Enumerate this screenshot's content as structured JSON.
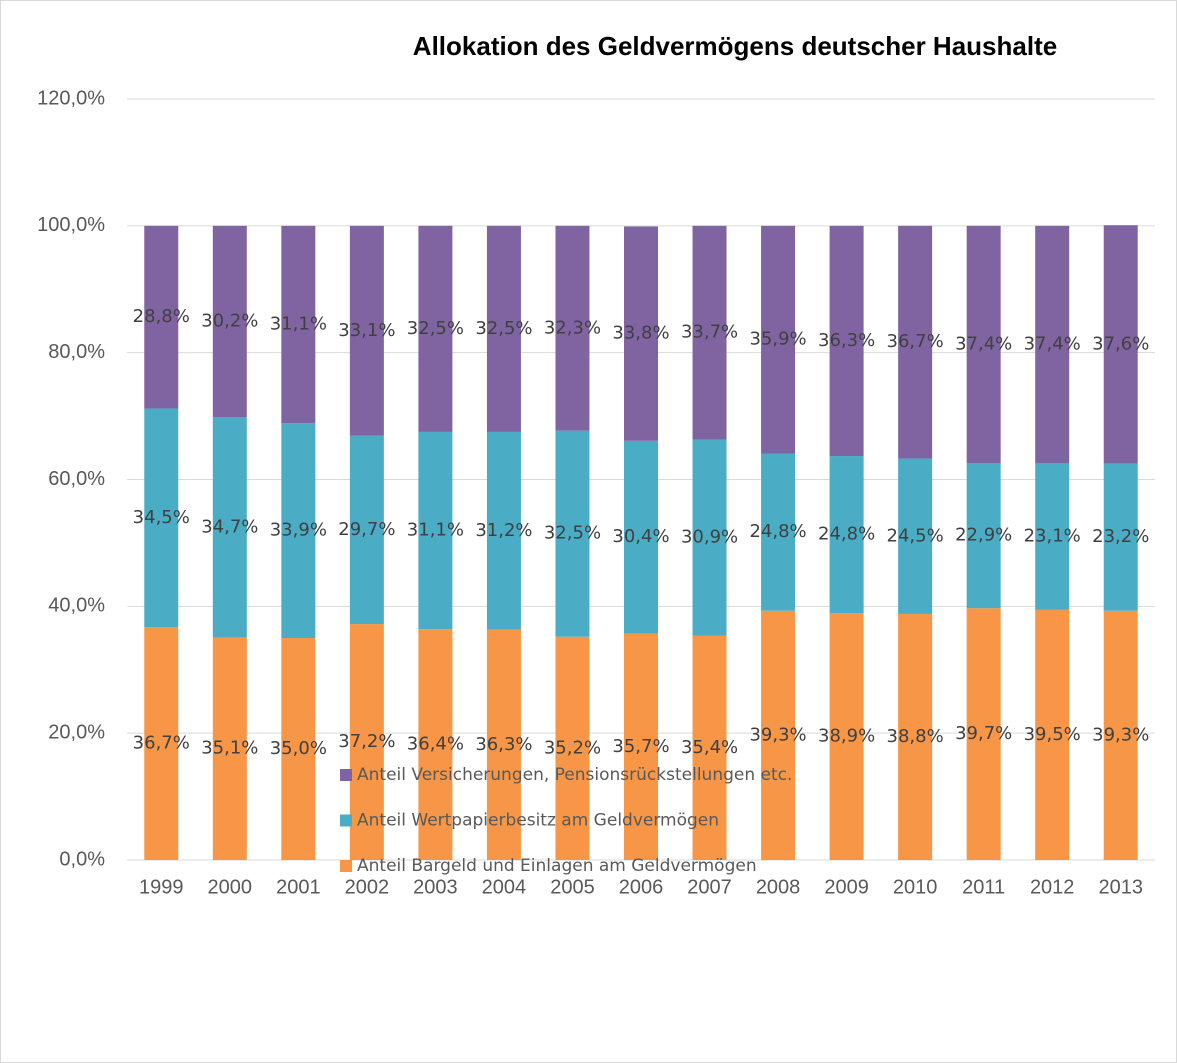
{
  "chart_data": {
    "type": "stacked_bar",
    "title": "Allokation des Geldvermögens deutscher Haushalte",
    "categories": [
      "1999",
      "2000",
      "2001",
      "2002",
      "2003",
      "2004",
      "2005",
      "2006",
      "2007",
      "2008",
      "2009",
      "2010",
      "2011",
      "2012",
      "2013"
    ],
    "series": [
      {
        "name": "Anteil Bargeld und Einlagen am Geldvermögen",
        "color": "#f79646",
        "values": [
          36.7,
          35.1,
          35.0,
          37.2,
          36.4,
          36.3,
          35.2,
          35.7,
          35.4,
          39.3,
          38.9,
          38.8,
          39.7,
          39.5,
          39.3
        ],
        "value_labels": [
          "36,7%",
          "35,1%",
          "35,0%",
          "37,2%",
          "36,4%",
          "36,3%",
          "35,2%",
          "35,7%",
          "35,4%",
          "39,3%",
          "38,9%",
          "38,8%",
          "39,7%",
          "39,5%",
          "39,3%"
        ]
      },
      {
        "name": "Anteil Wertpapierbesitz am Geldvermögen",
        "color": "#4bacc6",
        "values": [
          34.5,
          34.7,
          33.9,
          29.7,
          31.1,
          31.2,
          32.5,
          30.4,
          30.9,
          24.8,
          24.8,
          24.5,
          22.9,
          23.1,
          23.2
        ],
        "value_labels": [
          "34,5%",
          "34,7%",
          "33,9%",
          "29,7%",
          "31,1%",
          "31,2%",
          "32,5%",
          "30,4%",
          "30,9%",
          "24,8%",
          "24,8%",
          "24,5%",
          "22,9%",
          "23,1%",
          "23,2%"
        ]
      },
      {
        "name": "Anteil Versicherungen, Pensionsrückstellungen etc.",
        "color": "#8064a2",
        "values": [
          28.8,
          30.2,
          31.1,
          33.1,
          32.5,
          32.5,
          32.3,
          33.8,
          33.7,
          35.9,
          36.3,
          36.7,
          37.4,
          37.4,
          37.6
        ],
        "value_labels": [
          "28,8%",
          "30,2%",
          "31,1%",
          "33,1%",
          "32,5%",
          "32,5%",
          "32,3%",
          "33,8%",
          "33,7%",
          "35,9%",
          "36,3%",
          "36,7%",
          "37,4%",
          "37,4%",
          "37,6%"
        ]
      }
    ],
    "ylim": [
      0,
      120
    ],
    "yticks": [
      {
        "value": 0,
        "label": "0,0%"
      },
      {
        "value": 20,
        "label": "20,0%"
      },
      {
        "value": 40,
        "label": "40,0%"
      },
      {
        "value": 60,
        "label": "60,0%"
      },
      {
        "value": 80,
        "label": "80,0%"
      },
      {
        "value": 100,
        "label": "100,0%"
      },
      {
        "value": 120,
        "label": "120,0%"
      }
    ],
    "grid": true
  }
}
